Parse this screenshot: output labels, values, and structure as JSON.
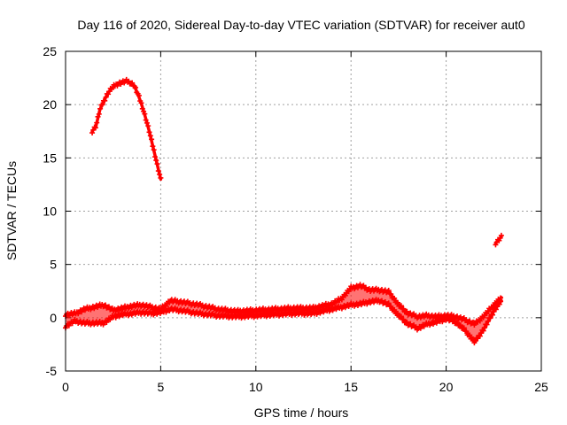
{
  "chart_data": {
    "type": "scatter",
    "title": "Day 116 of 2020, Sidereal Day-to-day VTEC variation (SDTVAR) for receiver aut0",
    "xlabel": "GPS time / hours",
    "ylabel": "SDTVAR / TECUs",
    "xlim": [
      0,
      25
    ],
    "ylim": [
      -5,
      25
    ],
    "xticks": [
      0,
      5,
      10,
      15,
      20,
      25
    ],
    "yticks": [
      -5,
      0,
      5,
      10,
      15,
      20,
      25
    ],
    "grid": true,
    "series_color": "#ff0000",
    "series": [
      {
        "name": "arc-high",
        "points": [
          [
            1.4,
            17.5
          ],
          [
            1.6,
            18.0
          ],
          [
            1.8,
            19.5
          ],
          [
            2.0,
            20.3
          ],
          [
            2.2,
            21.0
          ],
          [
            2.4,
            21.5
          ],
          [
            2.6,
            21.8
          ],
          [
            2.8,
            22.0
          ],
          [
            3.0,
            22.1
          ],
          [
            3.2,
            22.2
          ],
          [
            3.4,
            22.1
          ],
          [
            3.6,
            21.8
          ],
          [
            3.8,
            21.0
          ],
          [
            4.0,
            20.0
          ],
          [
            4.2,
            18.8
          ],
          [
            4.4,
            17.5
          ],
          [
            4.6,
            16.0
          ],
          [
            4.8,
            14.5
          ],
          [
            5.0,
            13.0
          ]
        ]
      },
      {
        "name": "band-upper",
        "points": [
          [
            0.0,
            0.3
          ],
          [
            0.5,
            0.4
          ],
          [
            1.0,
            0.8
          ],
          [
            1.5,
            1.0
          ],
          [
            2.0,
            1.2
          ],
          [
            2.5,
            0.7
          ],
          [
            3.0,
            0.9
          ],
          [
            3.5,
            1.1
          ],
          [
            4.0,
            1.2
          ],
          [
            4.5,
            1.0
          ],
          [
            5.0,
            0.8
          ],
          [
            5.5,
            1.6
          ],
          [
            6.0,
            1.5
          ],
          [
            7.0,
            1.2
          ],
          [
            8.0,
            0.8
          ],
          [
            9.0,
            0.6
          ],
          [
            10.0,
            0.7
          ],
          [
            11.0,
            0.8
          ],
          [
            12.0,
            0.9
          ],
          [
            13.0,
            0.9
          ],
          [
            14.0,
            1.3
          ],
          [
            14.5,
            1.8
          ],
          [
            15.0,
            2.8
          ],
          [
            15.5,
            3.0
          ],
          [
            16.0,
            2.6
          ],
          [
            16.5,
            2.6
          ],
          [
            17.0,
            2.4
          ],
          [
            17.5,
            1.2
          ],
          [
            18.0,
            0.4
          ],
          [
            18.5,
            0.1
          ],
          [
            19.0,
            0.2
          ],
          [
            19.5,
            0.1
          ],
          [
            20.0,
            0.2
          ],
          [
            20.5,
            0.1
          ],
          [
            21.0,
            -0.2
          ],
          [
            21.5,
            -0.6
          ],
          [
            22.0,
            0.2
          ],
          [
            22.5,
            1.2
          ],
          [
            22.9,
            1.9
          ]
        ]
      },
      {
        "name": "band-lower",
        "points": [
          [
            0.0,
            -0.8
          ],
          [
            0.5,
            -0.3
          ],
          [
            1.0,
            -0.5
          ],
          [
            1.5,
            -0.5
          ],
          [
            2.0,
            -0.5
          ],
          [
            2.5,
            0.1
          ],
          [
            3.0,
            0.3
          ],
          [
            3.5,
            0.4
          ],
          [
            4.0,
            0.5
          ],
          [
            4.5,
            0.4
          ],
          [
            5.0,
            0.5
          ],
          [
            5.5,
            0.8
          ],
          [
            6.0,
            0.7
          ],
          [
            7.0,
            0.4
          ],
          [
            8.0,
            0.2
          ],
          [
            9.0,
            0.1
          ],
          [
            10.0,
            0.2
          ],
          [
            11.0,
            0.3
          ],
          [
            12.0,
            0.4
          ],
          [
            13.0,
            0.4
          ],
          [
            14.0,
            0.8
          ],
          [
            15.0,
            1.2
          ],
          [
            15.5,
            1.3
          ],
          [
            16.0,
            1.5
          ],
          [
            16.5,
            1.6
          ],
          [
            17.0,
            1.2
          ],
          [
            17.5,
            0.2
          ],
          [
            18.0,
            -0.6
          ],
          [
            18.5,
            -1.0
          ],
          [
            19.0,
            -0.6
          ],
          [
            19.5,
            -0.4
          ],
          [
            20.0,
            -0.1
          ],
          [
            20.5,
            -0.4
          ],
          [
            21.0,
            -1.2
          ],
          [
            21.5,
            -2.3
          ],
          [
            22.0,
            -1.0
          ],
          [
            22.5,
            0.6
          ],
          [
            22.9,
            1.6
          ]
        ]
      },
      {
        "name": "arc-small",
        "points": [
          [
            22.6,
            7.0
          ],
          [
            22.7,
            7.2
          ],
          [
            22.8,
            7.4
          ],
          [
            22.9,
            7.6
          ]
        ]
      }
    ]
  }
}
